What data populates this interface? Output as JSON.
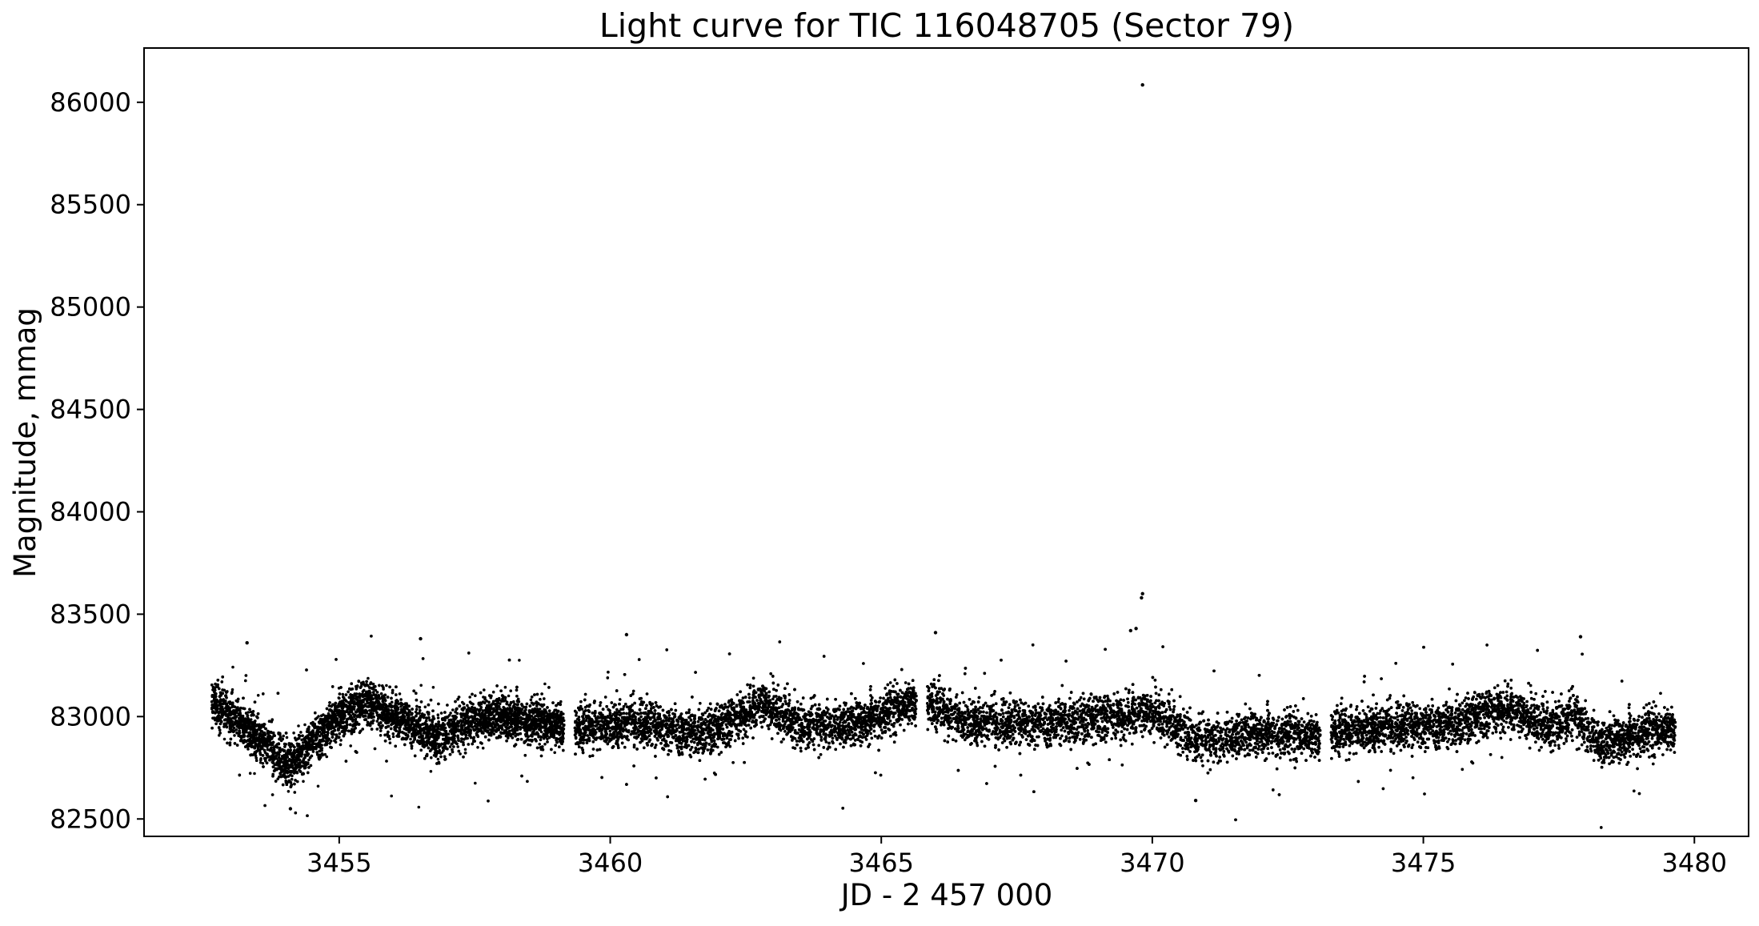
{
  "chart_data": {
    "type": "scatter",
    "title": "Light curve for TIC 116048705 (Sector 79)",
    "xlabel": "JD - 2 457 000",
    "ylabel": "Magnitude, mmag",
    "xlim": [
      3451.4,
      3481.0
    ],
    "ylim": [
      82415,
      86265
    ],
    "x_ticks": [
      3455,
      3460,
      3465,
      3470,
      3475,
      3480
    ],
    "x_tick_labels": [
      "3455",
      "3460",
      "3465",
      "3470",
      "3475",
      "3480"
    ],
    "y_ticks": [
      82500,
      83000,
      83500,
      84000,
      84500,
      85000,
      85500,
      86000
    ],
    "y_tick_labels": [
      "82500",
      "83000",
      "83500",
      "84000",
      "84500",
      "85000",
      "85500",
      "86000"
    ],
    "grid": false,
    "marker_color": "#000000",
    "segments": [
      {
        "x_start": 3452.65,
        "x_end": 3459.15
      },
      {
        "x_start": 3459.35,
        "x_end": 3465.65
      },
      {
        "x_start": 3465.85,
        "x_end": 3473.1
      },
      {
        "x_start": 3473.3,
        "x_end": 3479.65
      }
    ],
    "baseline_trend": {
      "x": [
        3452.65,
        3453.0,
        3453.5,
        3454.1,
        3454.5,
        3455.0,
        3455.5,
        3456.0,
        3456.8,
        3457.5,
        3458.0,
        3459.1,
        3459.4,
        3460.5,
        3461.5,
        3462.0,
        3462.8,
        3463.5,
        3464.5,
        3465.6,
        3465.9,
        3466.5,
        3468.0,
        3469.5,
        3470.0,
        3470.9,
        3472.0,
        3473.1,
        3473.3,
        3474.5,
        3475.5,
        3476.5,
        3477.3,
        3477.8,
        3478.3,
        3479.0,
        3479.65
      ],
      "y": [
        83070,
        83000,
        82900,
        82760,
        82880,
        83000,
        83070,
        83000,
        82900,
        82990,
        83000,
        82950,
        82940,
        82980,
        82920,
        82940,
        83060,
        82960,
        82960,
        83070,
        83060,
        82980,
        82970,
        83000,
        83020,
        82880,
        82920,
        82900,
        82920,
        82960,
        82960,
        83040,
        82950,
        83010,
        82860,
        82920,
        82940
      ]
    },
    "scatter_amplitude_mmag": 110,
    "outliers": {
      "x": [
        3469.82,
        3469.82,
        3469.8,
        3469.7,
        3469.6,
        3460.3,
        3466.0,
        3453.3,
        3456.5,
        3477.9,
        3454.1,
        3470.8
      ],
      "y": [
        86085,
        83600,
        83580,
        83430,
        83420,
        83400,
        83410,
        83360,
        83380,
        83390,
        82550,
        82590
      ]
    }
  }
}
